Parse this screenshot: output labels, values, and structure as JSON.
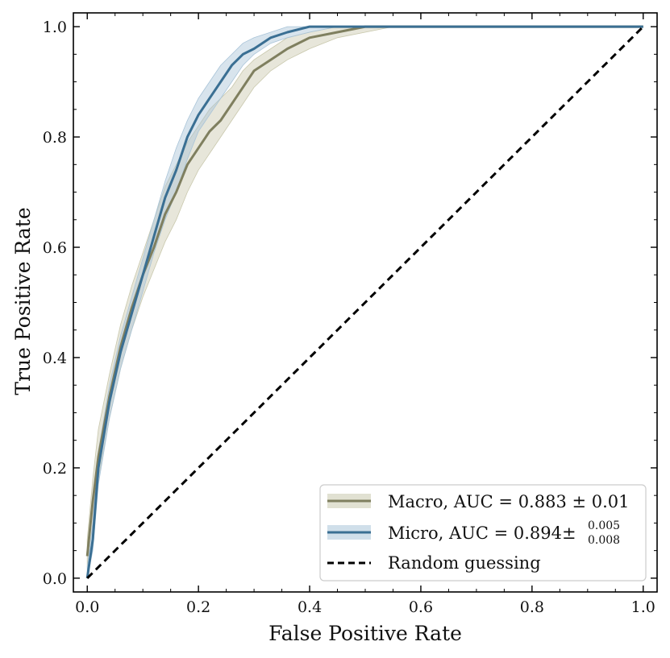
{
  "chart_data": {
    "type": "line",
    "title": "",
    "xlabel": "False Positive Rate",
    "ylabel": "True Positive Rate",
    "xlim": [
      -0.025,
      1.025
    ],
    "ylim": [
      -0.025,
      1.025
    ],
    "xticks": [
      0.0,
      0.2,
      0.4,
      0.6,
      0.8,
      1.0
    ],
    "yticks": [
      0.0,
      0.2,
      0.4,
      0.6,
      0.8,
      1.0
    ],
    "xtick_labels": [
      "0.0",
      "0.2",
      "0.4",
      "0.6",
      "0.8",
      "1.0"
    ],
    "ytick_labels": [
      "0.0",
      "0.2",
      "0.4",
      "0.6",
      "0.8",
      "1.0"
    ],
    "grid": false,
    "legend_position": "bottom-right",
    "series": [
      {
        "name": "Macro",
        "legend_label": "Macro, AUC = 0.883 ± 0.01",
        "legend_text": "Macro, AUC = 0.883 ± 0.01",
        "color": "#7f7f5f",
        "band_color": "#c9c8ad",
        "x": [
          0.0,
          0.01,
          0.02,
          0.04,
          0.06,
          0.08,
          0.1,
          0.12,
          0.14,
          0.16,
          0.18,
          0.2,
          0.22,
          0.24,
          0.26,
          0.28,
          0.3,
          0.33,
          0.36,
          0.4,
          0.45,
          0.5,
          0.55,
          0.6,
          0.7,
          0.8,
          0.9,
          1.0
        ],
        "y": [
          0.04,
          0.14,
          0.22,
          0.33,
          0.42,
          0.49,
          0.55,
          0.6,
          0.66,
          0.7,
          0.75,
          0.78,
          0.81,
          0.83,
          0.86,
          0.89,
          0.92,
          0.94,
          0.96,
          0.98,
          0.99,
          1.0,
          1.0,
          1.0,
          1.0,
          1.0,
          1.0,
          1.0
        ],
        "band_lower": [
          0.02,
          0.1,
          0.18,
          0.29,
          0.38,
          0.45,
          0.51,
          0.56,
          0.61,
          0.65,
          0.7,
          0.74,
          0.77,
          0.8,
          0.83,
          0.86,
          0.89,
          0.92,
          0.94,
          0.96,
          0.98,
          0.99,
          1.0,
          1.0,
          1.0,
          1.0,
          1.0,
          1.0
        ],
        "band_upper": [
          0.07,
          0.18,
          0.27,
          0.37,
          0.46,
          0.53,
          0.59,
          0.65,
          0.71,
          0.75,
          0.79,
          0.82,
          0.85,
          0.87,
          0.89,
          0.92,
          0.94,
          0.96,
          0.98,
          0.99,
          1.0,
          1.0,
          1.0,
          1.0,
          1.0,
          1.0,
          1.0,
          1.0
        ]
      },
      {
        "name": "Micro",
        "legend_label": "Micro, AUC = 0.894 ±",
        "legend_text": "Micro, AUC = 0.894±",
        "legend_sup": "0.005",
        "legend_sub": "0.008",
        "color": "#3a6f93",
        "band_color": "#a9c4d8",
        "x": [
          0.0,
          0.01,
          0.02,
          0.04,
          0.06,
          0.08,
          0.1,
          0.12,
          0.14,
          0.16,
          0.18,
          0.2,
          0.22,
          0.24,
          0.26,
          0.28,
          0.3,
          0.33,
          0.36,
          0.4,
          0.45,
          0.5,
          0.55,
          0.6,
          0.7,
          0.8,
          0.9,
          1.0
        ],
        "y": [
          0.0,
          0.07,
          0.2,
          0.32,
          0.41,
          0.48,
          0.55,
          0.62,
          0.69,
          0.74,
          0.8,
          0.84,
          0.87,
          0.9,
          0.93,
          0.95,
          0.96,
          0.98,
          0.99,
          1.0,
          1.0,
          1.0,
          1.0,
          1.0,
          1.0,
          1.0,
          1.0,
          1.0
        ],
        "band_lower": [
          0.0,
          0.05,
          0.17,
          0.29,
          0.38,
          0.45,
          0.52,
          0.59,
          0.65,
          0.7,
          0.76,
          0.81,
          0.84,
          0.87,
          0.9,
          0.93,
          0.95,
          0.97,
          0.98,
          0.99,
          1.0,
          1.0,
          1.0,
          1.0,
          1.0,
          1.0,
          1.0,
          1.0
        ],
        "band_upper": [
          0.02,
          0.1,
          0.23,
          0.35,
          0.44,
          0.51,
          0.58,
          0.65,
          0.72,
          0.78,
          0.83,
          0.87,
          0.9,
          0.93,
          0.95,
          0.97,
          0.98,
          0.99,
          1.0,
          1.0,
          1.0,
          1.0,
          1.0,
          1.0,
          1.0,
          1.0,
          1.0,
          1.0
        ]
      },
      {
        "name": "Random guessing",
        "legend_label": "Random guessing",
        "legend_text": "Random guessing",
        "color": "#000000",
        "dashed": true,
        "x": [
          0.0,
          1.0
        ],
        "y": [
          0.0,
          1.0
        ]
      }
    ]
  }
}
